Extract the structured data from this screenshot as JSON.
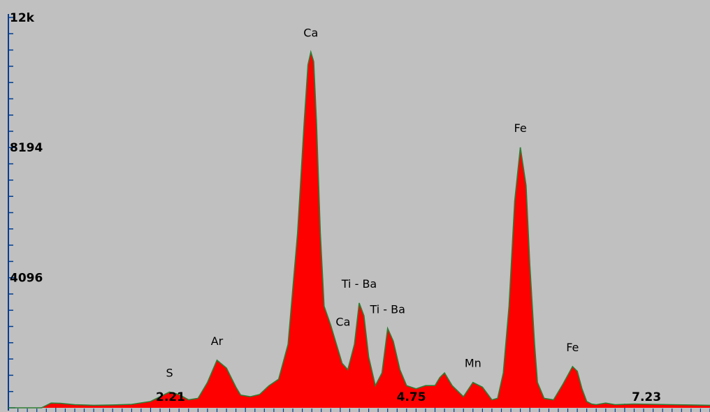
{
  "chart_data": {
    "type": "area",
    "title": "",
    "xlabel": "",
    "ylabel": "",
    "xlim": [
      0.5,
      7.9
    ],
    "ylim": [
      0,
      12288
    ],
    "y_tick_labels": [
      {
        "value": 12288,
        "label": "12k"
      },
      {
        "value": 8194,
        "label": "8194"
      },
      {
        "value": 4096,
        "label": "4096"
      }
    ],
    "x_tick_labels": [
      {
        "value": 2.21,
        "label": "2.21"
      },
      {
        "value": 4.75,
        "label": "4.75"
      },
      {
        "value": 7.23,
        "label": "7.23"
      }
    ],
    "fill_color": "#ff0000",
    "outline_color": "#2e7d32",
    "background_color": "#c0c0c0",
    "series": [
      {
        "x": [
          0.5,
          0.85,
          0.95,
          1.05,
          1.2,
          1.4,
          1.6,
          1.8,
          2.0,
          2.1,
          2.2,
          2.3,
          2.4,
          2.5,
          2.6,
          2.7,
          2.8,
          2.9,
          2.95,
          3.05,
          3.15,
          3.25,
          3.35,
          3.45,
          3.55,
          3.62,
          3.66,
          3.69,
          3.72,
          3.75,
          3.79,
          3.83,
          3.9,
          3.97,
          4.02,
          4.08,
          4.15,
          4.2,
          4.25,
          4.3,
          4.37,
          4.44,
          4.5,
          4.56,
          4.63,
          4.7,
          4.8,
          4.9,
          5.0,
          5.05,
          5.1,
          5.18,
          5.3,
          5.4,
          5.5,
          5.6,
          5.66,
          5.72,
          5.78,
          5.84,
          5.9,
          5.96,
          6.0,
          6.05,
          6.08,
          6.15,
          6.25,
          6.35,
          6.45,
          6.5,
          6.55,
          6.6,
          6.65,
          6.7,
          6.8,
          6.9,
          7.1,
          7.3,
          7.5,
          7.7,
          7.9
        ],
        "y": [
          0,
          0,
          150,
          140,
          100,
          80,
          90,
          110,
          200,
          350,
          500,
          420,
          250,
          300,
          800,
          1500,
          1250,
          650,
          400,
          350,
          420,
          700,
          900,
          2000,
          5500,
          9000,
          10800,
          11200,
          10900,
          9000,
          5500,
          3200,
          2600,
          1900,
          1400,
          1200,
          2000,
          3300,
          2900,
          1600,
          700,
          1100,
          2500,
          2100,
          1200,
          700,
          600,
          700,
          700,
          950,
          1100,
          700,
          350,
          800,
          650,
          250,
          300,
          1100,
          3200,
          6500,
          8200,
          7000,
          4500,
          2000,
          800,
          300,
          250,
          750,
          1300,
          1150,
          600,
          200,
          120,
          100,
          150,
          100,
          120,
          110,
          100,
          90,
          80
        ]
      }
    ],
    "annotations": [
      {
        "label": "Ca",
        "x": 3.69,
        "y": 11200
      },
      {
        "label": "Fe",
        "x": 5.9,
        "y": 8200
      },
      {
        "label": "Ti - Ba",
        "x": 4.2,
        "y": 3300
      },
      {
        "label": "Ti - Ba",
        "x": 4.5,
        "y": 2500
      },
      {
        "label": "Ca",
        "x": 4.03,
        "y": 2100
      },
      {
        "label": "Ar",
        "x": 2.7,
        "y": 1500
      },
      {
        "label": "Fe",
        "x": 6.45,
        "y": 1300
      },
      {
        "label": "Mn",
        "x": 5.4,
        "y": 800
      },
      {
        "label": "S",
        "x": 2.2,
        "y": 500
      }
    ]
  }
}
